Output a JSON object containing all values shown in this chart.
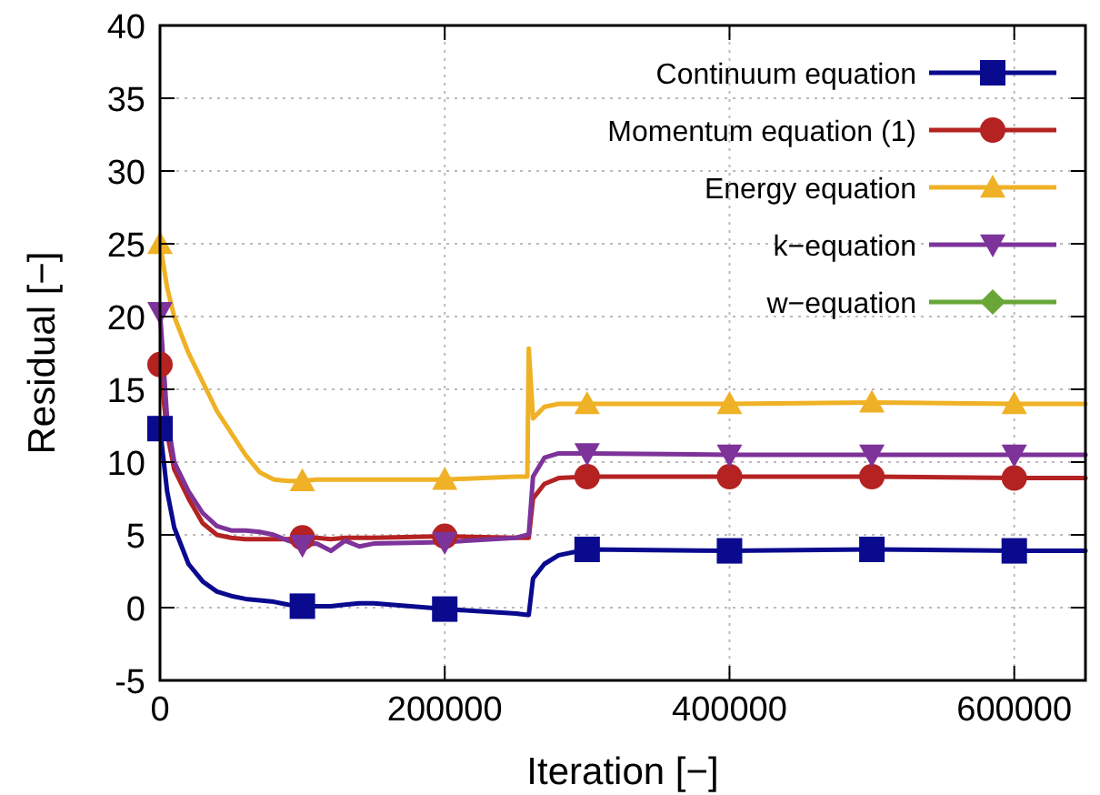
{
  "chart_data": {
    "type": "line",
    "xlabel": "Iteration [−]",
    "ylabel": "Residual [−]",
    "x": [
      0,
      5000,
      10000,
      20000,
      30000,
      40000,
      50000,
      60000,
      70000,
      80000,
      90000,
      100000,
      110000,
      120000,
      130000,
      140000,
      150000,
      200000,
      250000,
      258000,
      259000,
      262000,
      270000,
      280000,
      300000,
      400000,
      500000,
      600000,
      650000
    ],
    "series": [
      {
        "name": "Continuum equation",
        "color": "#0a0a8f",
        "values": [
          12.3,
          8,
          5.5,
          3,
          1.8,
          1.1,
          0.8,
          0.6,
          0.5,
          0.4,
          0.2,
          0.1,
          0.1,
          0.1,
          0.2,
          0.3,
          0.3,
          -0.1,
          -0.4,
          -0.5,
          -0.5,
          2.0,
          3.0,
          3.6,
          4.0,
          3.9,
          4.0,
          3.9,
          3.9
        ]
      },
      {
        "name": "Momentum equation (1)",
        "color": "#b42222",
        "values": [
          16.7,
          12,
          9.5,
          7.5,
          5.8,
          5.0,
          4.8,
          4.7,
          4.7,
          4.7,
          4.7,
          4.8,
          4.8,
          4.7,
          4.8,
          4.8,
          4.8,
          4.9,
          4.8,
          4.8,
          4.8,
          7.5,
          8.5,
          8.9,
          9.0,
          9.0,
          9.0,
          8.9,
          8.9
        ]
      },
      {
        "name": "Energy equation",
        "color": "#efb125",
        "values": [
          25,
          22,
          20,
          17.5,
          15.5,
          13.5,
          12,
          10.5,
          9.3,
          8.8,
          8.7,
          8.7,
          8.8,
          8.8,
          8.8,
          8.8,
          8.8,
          8.8,
          9.0,
          9.0,
          17.8,
          13,
          13.8,
          14.0,
          14.0,
          14.0,
          14.1,
          14.0,
          14.0
        ]
      },
      {
        "name": "k−equation",
        "color": "#7d3399",
        "values": [
          20.3,
          13,
          10,
          8,
          6.5,
          5.6,
          5.3,
          5.3,
          5.2,
          5.0,
          4.6,
          4.3,
          4.4,
          3.9,
          4.6,
          4.2,
          4.4,
          4.5,
          4.8,
          5.0,
          5.0,
          9.0,
          10.3,
          10.6,
          10.6,
          10.5,
          10.5,
          10.5,
          10.5
        ]
      },
      {
        "name": "w−equation",
        "color": "#6aa637",
        "marker": "diamond",
        "values": [
          null,
          null,
          null,
          null,
          null,
          null,
          null,
          null,
          null,
          null,
          null,
          null,
          null,
          null,
          null,
          null,
          null,
          null,
          null,
          null,
          null,
          null,
          null,
          null,
          null,
          null,
          null,
          null,
          null
        ]
      },
      {
        "type": "scatter",
        "color": "#0a0a8f",
        "marker": "square",
        "x": [
          0,
          100000,
          200000,
          300000,
          400000,
          500000,
          600000
        ],
        "values": [
          12.3,
          0.1,
          -0.1,
          4.0,
          3.9,
          4.0,
          3.9
        ]
      },
      {
        "type": "scatter",
        "color": "#b42222",
        "marker": "circle",
        "x": [
          0,
          100000,
          200000,
          300000,
          400000,
          500000,
          600000
        ],
        "values": [
          16.7,
          4.8,
          4.9,
          9.0,
          9.0,
          9.0,
          8.9
        ]
      },
      {
        "type": "scatter",
        "color": "#efb125",
        "marker": "triangle",
        "x": [
          0,
          100000,
          200000,
          300000,
          400000,
          500000,
          600000
        ],
        "values": [
          25,
          8.7,
          8.8,
          14.0,
          14.0,
          14.1,
          14.0
        ]
      },
      {
        "type": "scatter",
        "color": "#7d3399",
        "marker": "triangle-down",
        "x": [
          0,
          100000,
          200000,
          300000,
          400000,
          500000,
          600000
        ],
        "values": [
          20.3,
          4.3,
          4.5,
          10.6,
          10.5,
          10.5,
          10.5
        ]
      }
    ],
    "xlim": [
      0,
      650000
    ],
    "xticks": [
      0,
      200000,
      400000,
      600000
    ],
    "ylim": [
      -5,
      40
    ],
    "yticks": [
      -5,
      0,
      5,
      10,
      15,
      20,
      25,
      30,
      35,
      40
    ],
    "grid": true,
    "legend": "top right",
    "line_style": "solid"
  }
}
